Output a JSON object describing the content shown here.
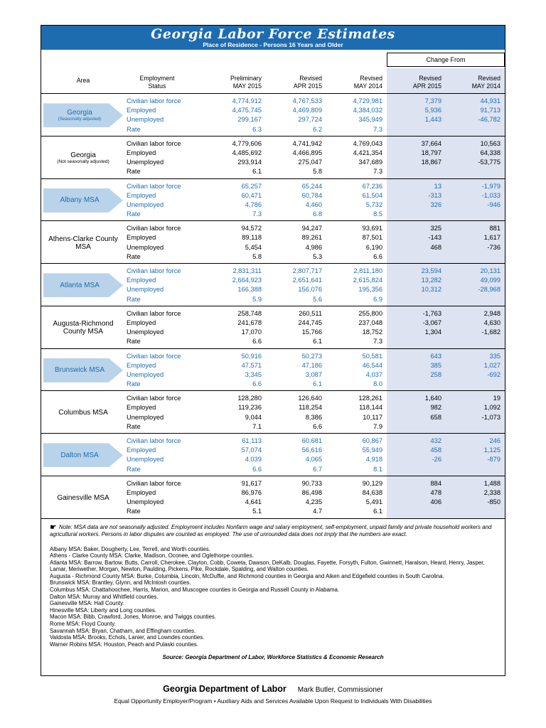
{
  "header": {
    "title": "Georgia Labor Force Estimates",
    "subtitle": "Place of Residence - Persons 16 Years and Older"
  },
  "table": {
    "change_from_label": "Change From",
    "col_headers": [
      {
        "l1": "Area",
        "l2": ""
      },
      {
        "l1": "Employment",
        "l2": "Status"
      },
      {
        "l1": "Preliminary",
        "l2": "MAY 2015"
      },
      {
        "l1": "Revised",
        "l2": "APR 2015"
      },
      {
        "l1": "Revised",
        "l2": "MAY 2014"
      },
      {
        "l1": "Revised",
        "l2": "APR 2015"
      },
      {
        "l1": "Revised",
        "l2": "MAY 2014"
      }
    ],
    "row_labels": [
      "Civilian labor force",
      "Employed",
      "Unemployed",
      "Rate"
    ],
    "groups": [
      {
        "area": "Georgia",
        "area_sub": "(Seasonally adjusted)",
        "style": "arrow",
        "rows": [
          [
            "4,774,912",
            "4,767,533",
            "4,729,981",
            "7,379",
            "44,931"
          ],
          [
            "4,475,745",
            "4,469,809",
            "4,384,032",
            "5,936",
            "91,713"
          ],
          [
            "299,167",
            "297,724",
            "345,949",
            "1,443",
            "-46,782"
          ],
          [
            "6.3",
            "6.2",
            "7.3",
            "",
            ""
          ]
        ]
      },
      {
        "area": "Georgia",
        "area_sub": "(Not seasonally adjusted)",
        "style": "plain",
        "rows": [
          [
            "4,779,606",
            "4,741,942",
            "4,769,043",
            "37,664",
            "10,563"
          ],
          [
            "4,485,692",
            "4,466,895",
            "4,421,354",
            "18,797",
            "64,338"
          ],
          [
            "293,914",
            "275,047",
            "347,689",
            "18,867",
            "-53,775"
          ],
          [
            "6.1",
            "5.8",
            "7.3",
            "",
            ""
          ]
        ]
      },
      {
        "area": "Albany MSA",
        "area_sub": "",
        "style": "arrow",
        "rows": [
          [
            "65,257",
            "65,244",
            "67,236",
            "13",
            "-1,979"
          ],
          [
            "60,471",
            "60,784",
            "61,504",
            "-313",
            "-1,033"
          ],
          [
            "4,786",
            "4,460",
            "5,732",
            "326",
            "-946"
          ],
          [
            "7.3",
            "6.8",
            "8.5",
            "",
            ""
          ]
        ]
      },
      {
        "area": "Athens-Clarke County MSA",
        "area_sub": "",
        "style": "plain",
        "rows": [
          [
            "94,572",
            "94,247",
            "93,691",
            "325",
            "881"
          ],
          [
            "89,118",
            "89,261",
            "87,501",
            "-143",
            "1,617"
          ],
          [
            "5,454",
            "4,986",
            "6,190",
            "468",
            "-736"
          ],
          [
            "5.8",
            "5.3",
            "6.6",
            "",
            ""
          ]
        ]
      },
      {
        "area": "Atlanta MSA",
        "area_sub": "",
        "style": "arrow",
        "rows": [
          [
            "2,831,311",
            "2,807,717",
            "2,811,180",
            "23,594",
            "20,131"
          ],
          [
            "2,664,923",
            "2,651,641",
            "2,615,824",
            "13,282",
            "49,099"
          ],
          [
            "166,388",
            "156,076",
            "195,356",
            "10,312",
            "-28,968"
          ],
          [
            "5.9",
            "5.6",
            "6.9",
            "",
            ""
          ]
        ]
      },
      {
        "area": "Augusta-Richmond County MSA",
        "area_sub": "",
        "style": "plain",
        "rows": [
          [
            "258,748",
            "260,511",
            "255,800",
            "-1,763",
            "2,948"
          ],
          [
            "241,678",
            "244,745",
            "237,048",
            "-3,067",
            "4,630"
          ],
          [
            "17,070",
            "15,766",
            "18,752",
            "1,304",
            "-1,682"
          ],
          [
            "6.6",
            "6.1",
            "7.3",
            "",
            ""
          ]
        ]
      },
      {
        "area": "Brunswick MSA",
        "area_sub": "",
        "style": "arrow",
        "rows": [
          [
            "50,916",
            "50,273",
            "50,581",
            "643",
            "335"
          ],
          [
            "47,571",
            "47,186",
            "46,544",
            "385",
            "1,027"
          ],
          [
            "3,345",
            "3,087",
            "4,037",
            "258",
            "-692"
          ],
          [
            "6.6",
            "6.1",
            "8.0",
            "",
            ""
          ]
        ]
      },
      {
        "area": "Columbus MSA",
        "area_sub": "",
        "style": "plain",
        "rows": [
          [
            "128,280",
            "126,640",
            "128,261",
            "1,640",
            "19"
          ],
          [
            "119,236",
            "118,254",
            "118,144",
            "982",
            "1,092"
          ],
          [
            "9,044",
            "8,386",
            "10,117",
            "658",
            "-1,073"
          ],
          [
            "7.1",
            "6.6",
            "7.9",
            "",
            ""
          ]
        ]
      },
      {
        "area": "Dalton MSA",
        "area_sub": "",
        "style": "arrow",
        "rows": [
          [
            "61,113",
            "60,681",
            "60,867",
            "432",
            "246"
          ],
          [
            "57,074",
            "56,616",
            "55,949",
            "458",
            "1,125"
          ],
          [
            "4,039",
            "4,065",
            "4,918",
            "-26",
            "-879"
          ],
          [
            "6.6",
            "6.7",
            "8.1",
            "",
            ""
          ]
        ]
      },
      {
        "area": "Gainesville MSA",
        "area_sub": "",
        "style": "plain",
        "rows": [
          [
            "91,617",
            "90,733",
            "90,129",
            "884",
            "1,488"
          ],
          [
            "86,976",
            "86,498",
            "84,638",
            "478",
            "2,338"
          ],
          [
            "4,641",
            "4,235",
            "5,491",
            "406",
            "-850"
          ],
          [
            "5.1",
            "4.7",
            "6.1",
            "",
            ""
          ]
        ]
      }
    ]
  },
  "notes": {
    "hand_icon": "☛",
    "msa_note": "Note: MSA data are not seasonally adjusted. Employment includes Nonfarm wage and salary employment, self-employment, unpaid family and private household workers and agricultural workers. Persons in labor disputes are counted as employed. The use of unrounded data does not imply that the numbers are exact.",
    "county_lines": [
      "Albany MSA: Baker, Dougherty, Lee, Terrell, and Worth counties.",
      "Athens - Clarke County MSA: Clarke, Madison, Oconee, and Oglethorpe counties.",
      "Atlanta MSA: Barrow, Bartow, Butts, Carroll, Cherokee, Clayton, Cobb, Coweta, Dawson, DeKalb, Douglas, Fayette, Forsyth, Fulton, Gwinnett, Haralson, Heard, Henry, Jasper, Lamar, Meriwether, Morgan, Newton, Paulding, Pickens, Pike, Rockdale, Spalding, and Walton counties.",
      "Augusta - Richmond County MSA: Burke, Columbia, Lincoln, McDuffie, and Richmond counties in Georgia and Aiken and Edgefield counties in South Carolina.",
      "Brunswick MSA: Brantley, Glynn, and McIntosh counties.",
      "Columbus MSA: Chattahoochee, Harris, Marion, and Muscogee counties in Georgia and Russell County in Alabama.",
      "Dalton MSA: Murray and Whitfield counties.",
      "Gainesville MSA: Hall County.",
      "Hinesville MSA: Liberty and Long counties.",
      "Macon MSA: Bibb, Crawford, Jones, Monroe, and Twiggs counties.",
      "Rome MSA: Floyd County.",
      "Savannah MSA: Bryan, Chatham, and Effingham counties.",
      "Valdosta MSA: Brooks, Echols, Lanier, and Lowndes counties.",
      "Warner Robins MSA: Houston, Peach and Pulaski counties."
    ],
    "source": "Source:  Georgia Department of Labor, Workforce Statistics & Economic Research"
  },
  "footer": {
    "org": "Georgia Department of Labor",
    "commissioner": "Mark Butler, Commissioner",
    "eeo": "Equal Opportunity Employer/Program • Auxiliary Aids and Services Available Upon Request to Individuals With Disabilities"
  },
  "colors": {
    "banner_blue": "#1e6cb0",
    "blue_text": "#1e6cb0",
    "light_blue_arrow": "#b9d3ea",
    "change_shade": "#dde3f1"
  }
}
